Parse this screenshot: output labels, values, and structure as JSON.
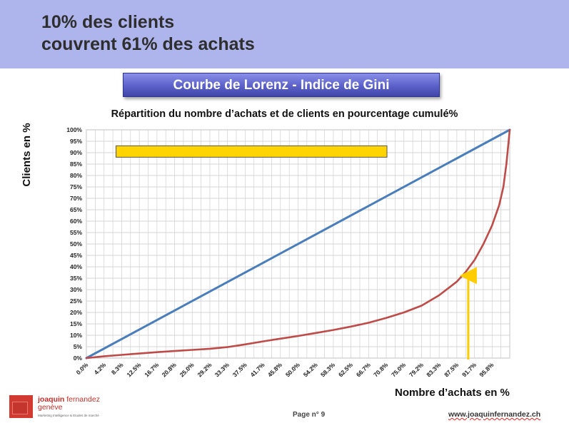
{
  "slide": {
    "title_line1": "10% des clients",
    "title_line2": "couvrent 61% des achats",
    "banner": "Courbe de Lorenz - Indice de Gini",
    "page_label": "Page n° 9",
    "website": "www.joaquinfernandez.ch",
    "logo": {
      "name_line1_a": "joaquin",
      "name_line1_b": " fernandez",
      "name_line2": "genève",
      "tagline": "Marketing Intelligence & Etudes de marché"
    }
  },
  "chart_data": {
    "type": "line",
    "title": "Répartition du nombre d’achats et de clients en pourcentage cumulé%",
    "xlabel": "Nombre d’achats en %",
    "ylabel": "Clients en %",
    "ylim": [
      0,
      100
    ],
    "xlim": [
      0,
      100
    ],
    "grid": true,
    "y_ticks": [
      "0%",
      "5%",
      "10%",
      "15%",
      "20%",
      "25%",
      "30%",
      "35%",
      "40%",
      "45%",
      "50%",
      "55%",
      "60%",
      "65%",
      "70%",
      "75%",
      "80%",
      "85%",
      "90%",
      "95%",
      "100%"
    ],
    "x_ticks": [
      "0.0%",
      "4.2%",
      "8.3%",
      "12.5%",
      "16.7%",
      "20.8%",
      "25.0%",
      "29.2%",
      "33.3%",
      "37.5%",
      "41.7%",
      "45.8%",
      "50.0%",
      "54.2%",
      "58.3%",
      "62.5%",
      "66.7%",
      "70.8%",
      "75.0%",
      "79.2%",
      "83.3%",
      "87.5%",
      "91.7%",
      "95.8%"
    ],
    "series": [
      {
        "color": "#4a7ebb",
        "x": [
          0,
          100
        ],
        "y": [
          0,
          100
        ]
      },
      {
        "color": "#be4b48",
        "x": [
          0,
          4.2,
          8.3,
          12.5,
          16.7,
          20.8,
          25.0,
          29.2,
          33.3,
          37.5,
          41.7,
          45.8,
          50.0,
          54.2,
          58.3,
          62.5,
          66.7,
          70.8,
          75.0,
          79.2,
          83.3,
          87.5,
          89.5,
          91.7,
          93.8,
          95.8,
          97.5,
          98.5,
          99.2,
          100
        ],
        "y": [
          0,
          0.8,
          1.4,
          2.0,
          2.6,
          3.1,
          3.6,
          4.1,
          4.8,
          6.0,
          7.3,
          8.5,
          9.7,
          11.0,
          12.3,
          13.8,
          15.5,
          17.6,
          20.0,
          23.0,
          27.5,
          33.5,
          37.5,
          43.0,
          50.0,
          58.0,
          67.0,
          75.0,
          85.0,
          100
        ]
      }
    ],
    "annotations": {
      "highlight_box_color": "#ffd400",
      "arrow_x": 90.2,
      "arrow_to_y": 38,
      "arrow_color": "#ffcc00"
    }
  }
}
